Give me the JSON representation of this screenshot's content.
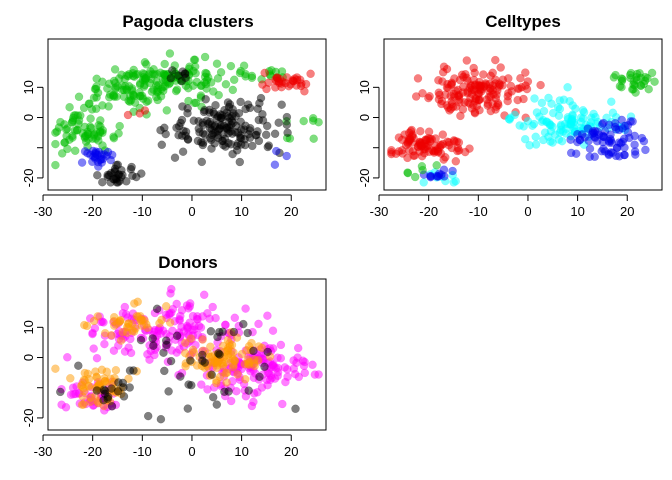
{
  "chart_data": [
    {
      "type": "scatter",
      "title": "Pagoda clusters",
      "xlabel": "",
      "ylabel": "",
      "xlim": [
        -29,
        27
      ],
      "ylim": [
        -24,
        26
      ],
      "xticks": [
        -30,
        -20,
        -10,
        0,
        10,
        20
      ],
      "yticks": [
        -20,
        -10,
        0,
        10
      ],
      "ytick_labels": [
        "-20",
        "",
        "0",
        "10"
      ],
      "grid": false,
      "legend": "none",
      "marker_opacity": 0.5,
      "series": [
        {
          "color": "#00bb00",
          "clusters": [
            {
              "cx": -12,
              "cy": 10,
              "sx": 7,
              "sy": 4.5,
              "n": 95
            },
            {
              "cx": -2,
              "cy": 13,
              "sx": 6,
              "sy": 4,
              "n": 80
            },
            {
              "cx": -22,
              "cy": -5,
              "sx": 4.5,
              "sy": 5,
              "n": 70
            },
            {
              "cx": 13,
              "cy": 13,
              "sx": 5,
              "sy": 2.5,
              "n": 20
            },
            {
              "cx": 23,
              "cy": -4,
              "sx": 3,
              "sy": 3,
              "n": 8
            }
          ]
        },
        {
          "color": "#000000",
          "clusters": [
            {
              "cx": 7,
              "cy": -3,
              "sx": 7.5,
              "sy": 6,
              "n": 150
            },
            {
              "cx": -15,
              "cy": -19,
              "sx": 2.5,
              "sy": 2,
              "n": 30
            },
            {
              "cx": -2,
              "cy": 13,
              "sx": 2.5,
              "sy": 2,
              "n": 8
            }
          ]
        },
        {
          "color": "#ee0000",
          "clusters": [
            {
              "cx": 19,
              "cy": 12,
              "sx": 3,
              "sy": 2,
              "n": 32
            },
            {
              "cx": -13,
              "cy": 1,
              "sx": 2,
              "sy": 2,
              "n": 3
            }
          ]
        },
        {
          "color": "#0000ee",
          "clusters": [
            {
              "cx": -19,
              "cy": -13,
              "sx": 2.5,
              "sy": 2,
              "n": 26
            },
            {
              "cx": 18,
              "cy": -12,
              "sx": 2,
              "sy": 2,
              "n": 3
            }
          ]
        }
      ]
    },
    {
      "type": "scatter",
      "title": "Celltypes",
      "xlabel": "",
      "ylabel": "",
      "xlim": [
        -29,
        27
      ],
      "ylim": [
        -24,
        26
      ],
      "xticks": [
        -30,
        -20,
        -10,
        0,
        10,
        20
      ],
      "yticks": [
        -20,
        -10,
        0,
        10
      ],
      "ytick_labels": [
        "-20",
        "",
        "0",
        "10"
      ],
      "grid": false,
      "legend": "none",
      "marker_opacity": 0.5,
      "series": [
        {
          "color": "#ee0000",
          "clusters": [
            {
              "cx": -10,
              "cy": 8,
              "sx": 7,
              "sy": 5.5,
              "n": 150
            },
            {
              "cx": -20,
              "cy": -9,
              "sx": 4.5,
              "sy": 3.5,
              "n": 90
            }
          ]
        },
        {
          "color": "#00ffff",
          "clusters": [
            {
              "cx": 8,
              "cy": -2,
              "sx": 7,
              "sy": 5,
              "n": 110
            },
            {
              "cx": -18,
              "cy": -20,
              "sx": 2.5,
              "sy": 1.5,
              "n": 10
            }
          ]
        },
        {
          "color": "#0000ee",
          "clusters": [
            {
              "cx": 16,
              "cy": -8,
              "sx": 5,
              "sy": 4.5,
              "n": 75
            },
            {
              "cx": -18,
              "cy": -19,
              "sx": 2.5,
              "sy": 1.5,
              "n": 12
            }
          ]
        },
        {
          "color": "#00bb00",
          "clusters": [
            {
              "cx": 21,
              "cy": 12,
              "sx": 3.5,
              "sy": 2.5,
              "n": 30
            },
            {
              "cx": -22,
              "cy": -18,
              "sx": 2,
              "sy": 1.5,
              "n": 6
            }
          ]
        }
      ]
    },
    {
      "type": "scatter",
      "title": "Donors",
      "xlabel": "",
      "ylabel": "",
      "xlim": [
        -29,
        27
      ],
      "ylim": [
        -24,
        26
      ],
      "xticks": [
        -30,
        -20,
        -10,
        0,
        10,
        20
      ],
      "yticks": [
        -20,
        -10,
        0,
        10
      ],
      "ytick_labels": [
        "-20",
        "",
        "0",
        "10"
      ],
      "grid": false,
      "legend": "none",
      "marker_opacity": 0.5,
      "series": [
        {
          "color": "#ff00ff",
          "clusters": [
            {
              "cx": -6,
              "cy": 8,
              "sx": 10,
              "sy": 6.5,
              "n": 160
            },
            {
              "cx": 12,
              "cy": -4,
              "sx": 8,
              "sy": 7,
              "n": 130
            },
            {
              "cx": -20,
              "cy": -14,
              "sx": 4,
              "sy": 4,
              "n": 40
            }
          ]
        },
        {
          "color": "#ff9900",
          "clusters": [
            {
              "cx": 6,
              "cy": 0,
              "sx": 6,
              "sy": 5,
              "n": 90
            },
            {
              "cx": -19,
              "cy": -9,
              "sx": 4,
              "sy": 4,
              "n": 60
            },
            {
              "cx": -12,
              "cy": 12,
              "sx": 6,
              "sy": 4,
              "n": 40
            }
          ]
        },
        {
          "color": "#000000",
          "clusters": [
            {
              "cx": 0,
              "cy": 0,
              "sx": 14,
              "sy": 11,
              "n": 45
            },
            {
              "cx": -17,
              "cy": -12,
              "sx": 3,
              "sy": 3,
              "n": 15
            }
          ]
        }
      ]
    }
  ]
}
